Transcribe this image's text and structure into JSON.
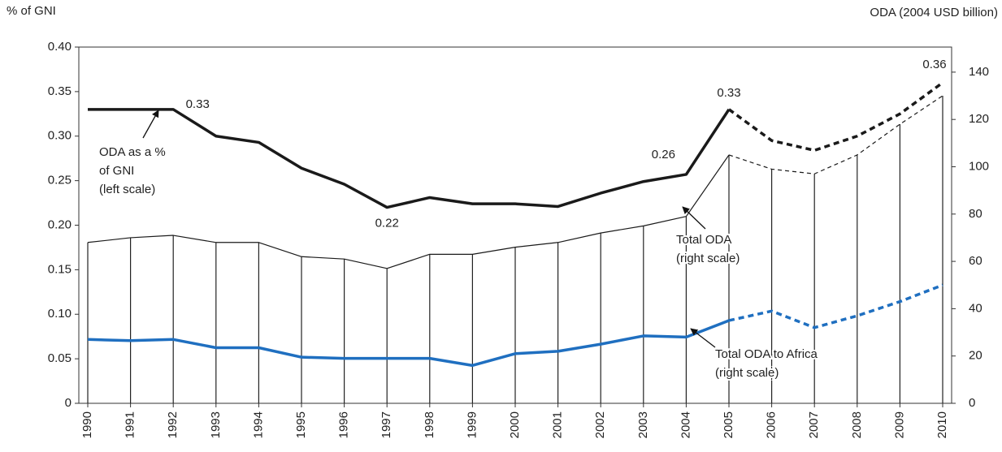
{
  "chart_data": {
    "type": "line",
    "y_label": "% of GNI",
    "y2_label": "ODA (2004 USD billion)",
    "categories": [
      "1990",
      "1991",
      "1992",
      "1993",
      "1994",
      "1995",
      "1996",
      "1997",
      "1998",
      "1999",
      "2000",
      "2001",
      "2002",
      "2003",
      "2004",
      "2005",
      "2006",
      "2007",
      "2008",
      "2009",
      "2010"
    ],
    "dashed_from": "2005",
    "ylim": [
      0,
      0.4
    ],
    "yticks": [
      0,
      0.05,
      {
        "value": 0.1,
        "label": "0.10"
      },
      0.15,
      {
        "value": 0.2,
        "label": "0.20"
      },
      0.25,
      {
        "value": 0.3,
        "label": "0.30"
      },
      0.35,
      {
        "value": 0.4,
        "label": "0.40"
      }
    ],
    "y2lim": [
      0,
      150.6
    ],
    "y2ticks": [
      0,
      20,
      40,
      60,
      80,
      100,
      120,
      140
    ],
    "series": [
      {
        "axis": "y",
        "color": "#1a1a1a",
        "width": 3.5,
        "values": [
          0.33,
          0.33,
          0.33,
          0.3,
          0.293,
          0.264,
          0.246,
          0.22,
          0.231,
          0.224,
          0.224,
          0.221,
          0.236,
          0.249,
          0.257,
          0.33,
          0.295,
          0.284,
          0.3,
          0.325,
          0.36
        ],
        "value_labels": [
          null,
          null,
          "0.33",
          null,
          null,
          null,
          null,
          "0.22",
          null,
          null,
          null,
          null,
          null,
          null,
          "0.26",
          "0.33",
          null,
          null,
          null,
          null,
          "0.36"
        ],
        "annotation": [
          "ODA as a %",
          "of GNI",
          "(left scale)"
        ]
      },
      {
        "axis": "y2",
        "color": "#1a1a1a",
        "width": 1.2,
        "drop_lines": true,
        "values": [
          68,
          70,
          71,
          68,
          68,
          62,
          61,
          57,
          63,
          63,
          66,
          68,
          72,
          75,
          79,
          105,
          99,
          97,
          105,
          118,
          130
        ],
        "annotation": [
          "Total ODA",
          "(right scale)"
        ]
      },
      {
        "axis": "y2",
        "color": "#1f6fc0",
        "width": 3.5,
        "values": [
          27,
          26.5,
          27,
          23.5,
          23.5,
          19.5,
          19,
          19,
          19,
          16,
          21,
          22,
          25,
          28.5,
          28,
          35,
          39,
          32,
          37,
          43,
          50
        ],
        "annotation": [
          "Total ODA to Africa",
          "(right scale)"
        ]
      }
    ]
  }
}
